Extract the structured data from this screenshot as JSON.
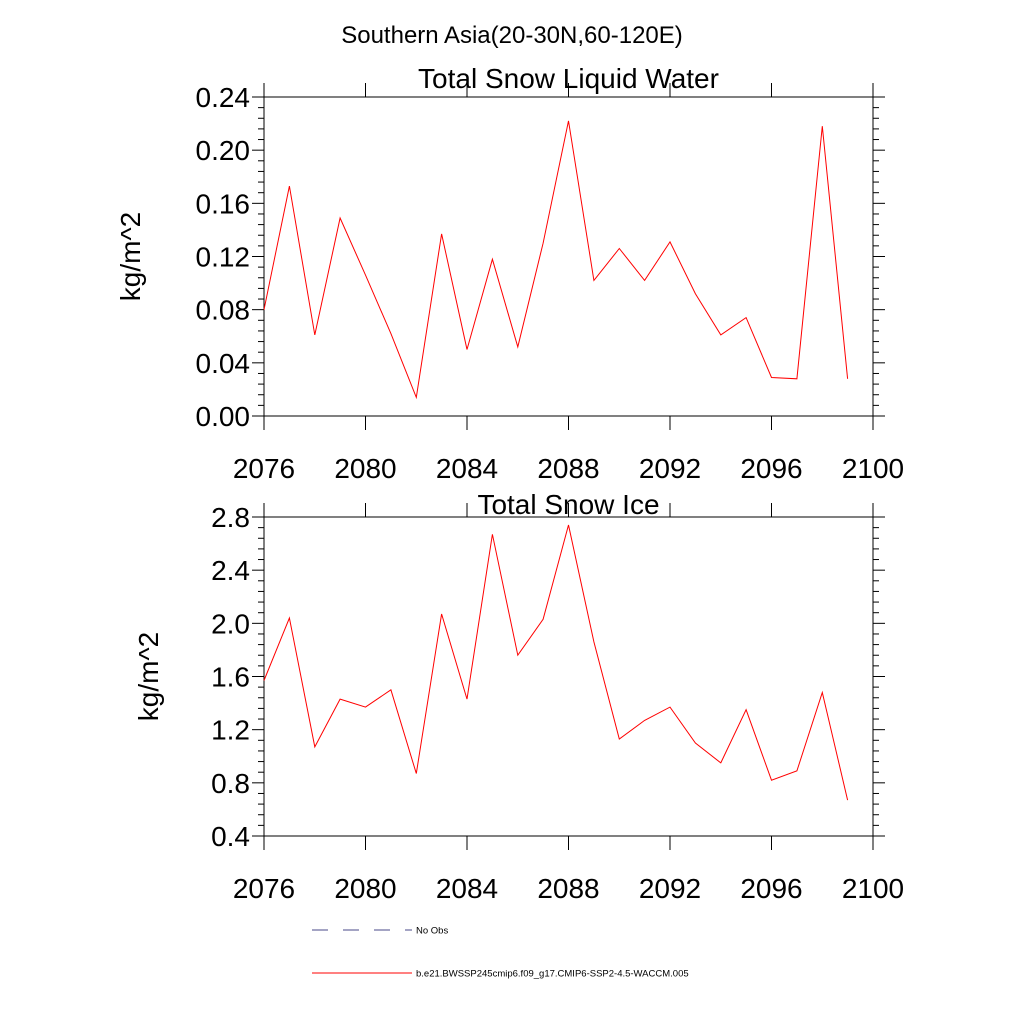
{
  "figure": {
    "suptitle": "Southern Asia(20-30N,60-120E)"
  },
  "chart_data": [
    {
      "type": "line",
      "title": "Total Snow Liquid Water",
      "xlabel": "",
      "ylabel": "kg/m^2",
      "xlim": [
        2076,
        2100
      ],
      "ylim": [
        0.0,
        0.24
      ],
      "xticks": [
        2076,
        2080,
        2084,
        2088,
        2092,
        2096,
        2100
      ],
      "xtick_labels": [
        "2076",
        "2080",
        "2084",
        "2088",
        "2092",
        "2096",
        "2100"
      ],
      "yticks": [
        0.0,
        0.04,
        0.08,
        0.12,
        0.16,
        0.2,
        0.24
      ],
      "ytick_labels": [
        "0.00",
        "0.04",
        "0.08",
        "0.12",
        "0.16",
        "0.20",
        "0.24"
      ],
      "grid": false,
      "x": [
        2076,
        2077,
        2078,
        2079,
        2080,
        2081,
        2082,
        2083,
        2084,
        2085,
        2086,
        2087,
        2088,
        2089,
        2090,
        2091,
        2092,
        2093,
        2094,
        2095,
        2096,
        2097,
        2098,
        2099
      ],
      "series": [
        {
          "name": "b.e21.BWSSP245cmip6.f09_g17.CMIP6-SSP2-4.5-WACCM.005",
          "color": "#ff0000",
          "values": [
            0.08,
            0.173,
            0.061,
            0.149,
            0.106,
            0.062,
            0.014,
            0.137,
            0.05,
            0.118,
            0.052,
            0.13,
            0.222,
            0.102,
            0.126,
            0.102,
            0.131,
            0.092,
            0.061,
            0.074,
            0.029,
            0.028,
            0.218,
            0.028
          ]
        }
      ]
    },
    {
      "type": "line",
      "title": "Total Snow Ice",
      "xlabel": "",
      "ylabel": "kg/m^2",
      "xlim": [
        2076,
        2100
      ],
      "ylim": [
        0.4,
        2.8
      ],
      "xticks": [
        2076,
        2080,
        2084,
        2088,
        2092,
        2096,
        2100
      ],
      "xtick_labels": [
        "2076",
        "2080",
        "2084",
        "2088",
        "2092",
        "2096",
        "2100"
      ],
      "yticks": [
        0.4,
        0.8,
        1.2,
        1.6,
        2.0,
        2.4,
        2.8
      ],
      "ytick_labels": [
        "0.4",
        "0.8",
        "1.2",
        "1.6",
        "2.0",
        "2.4",
        "2.8"
      ],
      "grid": false,
      "x": [
        2076,
        2077,
        2078,
        2079,
        2080,
        2081,
        2082,
        2083,
        2084,
        2085,
        2086,
        2087,
        2088,
        2089,
        2090,
        2091,
        2092,
        2093,
        2094,
        2095,
        2096,
        2097,
        2098,
        2099
      ],
      "series": [
        {
          "name": "b.e21.BWSSP245cmip6.f09_g17.CMIP6-SSP2-4.5-WACCM.005",
          "color": "#ff0000",
          "values": [
            1.57,
            2.04,
            1.07,
            1.43,
            1.37,
            1.5,
            0.87,
            2.07,
            1.43,
            2.67,
            1.76,
            2.03,
            2.74,
            1.86,
            1.13,
            1.27,
            1.37,
            1.1,
            0.95,
            1.35,
            0.82,
            0.89,
            1.48,
            0.67
          ]
        }
      ]
    }
  ],
  "legend": {
    "placement": "bottom",
    "items": [
      {
        "label": "No Obs",
        "style": "dashed",
        "color": "#4a4a8a"
      },
      {
        "label": "b.e21.BWSSP245cmip6.f09_g17.CMIP6-SSP2-4.5-WACCM.005",
        "style": "solid",
        "color": "#ff0000"
      }
    ]
  }
}
